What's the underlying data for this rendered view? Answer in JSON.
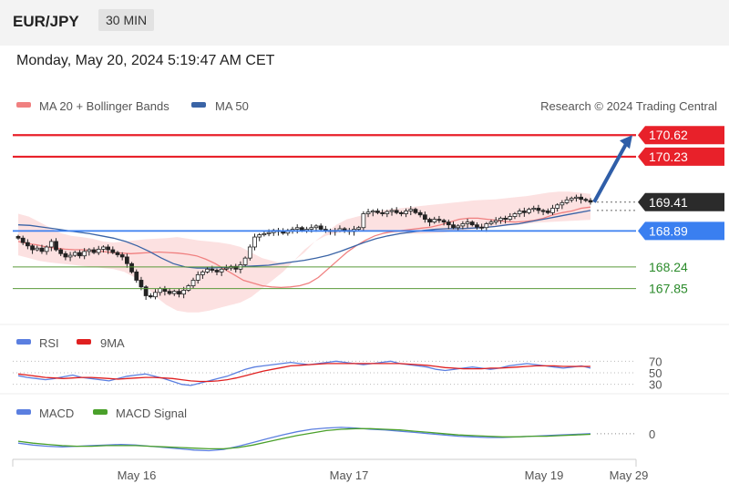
{
  "header": {
    "pair": "EUR/JPY",
    "timeframe": "30 MIN"
  },
  "datetime": "Monday, May 20, 2024 5:19:47 AM CET",
  "legend": {
    "ma20": "MA 20 + Bollinger Bands",
    "ma50": "MA 50",
    "rsi": "RSI",
    "rsi_ma": "9MA",
    "macd": "MACD",
    "macd_signal": "MACD Signal"
  },
  "credit": "Research © 2024 Trading Central",
  "colors": {
    "ma20": "#f08080",
    "ma50": "#3a64a6",
    "bollinger": "#fbd9d9",
    "resistance": "#e8212a",
    "support_blue": "#3a7ff0",
    "support_green": "#5a9a3a",
    "rsi": "#5b7fe0",
    "rsi_ma": "#e02020",
    "macd": "#5b7fe0",
    "macd_signal": "#4aa02a"
  },
  "chart_data": {
    "type": "candlestick",
    "x_labels": [
      "May 16",
      "May 17",
      "May 19",
      "May 29"
    ],
    "ylim": [
      167.3,
      170.92
    ],
    "levels": [
      {
        "value": 170.62,
        "label": "170.62",
        "kind": "resistance"
      },
      {
        "value": 170.23,
        "label": "170.23",
        "kind": "resistance"
      },
      {
        "value": 169.41,
        "label": "169.41",
        "kind": "current"
      },
      {
        "value": 168.89,
        "label": "168.89",
        "kind": "pivot"
      },
      {
        "value": 168.24,
        "label": "168.24",
        "kind": "support"
      },
      {
        "value": 167.85,
        "label": "167.85",
        "kind": "support"
      }
    ],
    "arrow_target": 170.62,
    "closes": [
      168.76,
      168.68,
      168.62,
      168.55,
      168.58,
      168.52,
      168.6,
      168.7,
      168.55,
      168.48,
      168.42,
      168.45,
      168.5,
      168.44,
      168.52,
      168.55,
      168.5,
      168.56,
      168.6,
      168.55,
      168.5,
      168.46,
      168.42,
      168.3,
      168.15,
      168.0,
      167.88,
      167.72,
      167.7,
      167.78,
      167.85,
      167.8,
      167.76,
      167.8,
      167.75,
      167.82,
      167.9,
      168.0,
      168.1,
      168.15,
      168.2,
      168.18,
      168.15,
      168.2,
      168.22,
      168.25,
      168.2,
      168.28,
      168.4,
      168.6,
      168.78,
      168.82,
      168.84,
      168.86,
      168.9,
      168.88,
      168.85,
      168.9,
      168.92,
      168.95,
      168.9,
      168.92,
      168.95,
      168.98,
      168.92,
      168.9,
      168.88,
      168.9,
      168.93,
      168.9,
      168.88,
      168.92,
      168.95,
      169.2,
      169.23,
      169.25,
      169.22,
      169.2,
      169.24,
      169.26,
      169.22,
      169.2,
      169.25,
      169.28,
      169.22,
      169.18,
      169.1,
      169.05,
      169.1,
      169.08,
      169.05,
      169.0,
      168.95,
      168.98,
      169.02,
      169.05,
      169.0,
      168.96,
      168.95,
      169.02,
      169.05,
      169.08,
      169.12,
      169.1,
      169.15,
      169.2,
      169.25,
      169.22,
      169.28,
      169.3,
      169.26,
      169.25,
      169.22,
      169.3,
      169.36,
      169.4,
      169.45,
      169.48,
      169.5,
      169.46,
      169.44,
      169.41
    ],
    "ma20": [
      168.7,
      168.66,
      168.64,
      168.6,
      168.58,
      168.56,
      168.55,
      168.55,
      168.53,
      168.52,
      168.5,
      168.49,
      168.48,
      168.49,
      168.5,
      168.51,
      168.5,
      168.49,
      168.47,
      168.44,
      168.38,
      168.3,
      168.2,
      168.1,
      168.0,
      167.95,
      167.9,
      167.88,
      167.87,
      167.88,
      167.9,
      167.95,
      168.05,
      168.2,
      168.35,
      168.5,
      168.62,
      168.72,
      168.8,
      168.85,
      168.88,
      168.9,
      168.92,
      168.94,
      168.96,
      169.0,
      169.05,
      169.1,
      169.12,
      169.12,
      169.1,
      169.08,
      169.06,
      169.05,
      169.06,
      169.08,
      169.12,
      169.18,
      169.22,
      169.25,
      169.3,
      169.32
    ],
    "ma50": [
      169.0,
      168.99,
      168.96,
      168.93,
      168.9,
      168.87,
      168.84,
      168.8,
      168.76,
      168.7,
      168.62,
      168.52,
      168.4,
      168.3,
      168.24,
      168.22,
      168.22,
      168.23,
      168.24,
      168.25,
      168.26,
      168.27,
      168.3,
      168.33,
      168.36,
      168.4,
      168.45,
      168.52,
      168.6,
      168.68,
      168.75,
      168.8,
      168.84,
      168.87,
      168.9,
      168.92,
      168.93,
      168.93,
      168.94,
      168.95,
      168.97,
      169.0,
      169.02,
      169.06,
      169.1,
      169.14,
      169.18,
      169.22,
      169.26
    ],
    "bollinger_upper": [
      169.2,
      169.15,
      169.05,
      168.95,
      168.85,
      168.8,
      168.78,
      168.75,
      168.7,
      168.68,
      168.7,
      168.72,
      168.74,
      168.75,
      168.76,
      168.78,
      168.75,
      168.72,
      168.7,
      168.68,
      168.65,
      168.6,
      168.5,
      168.4,
      168.35,
      168.3,
      168.35,
      168.5,
      168.7,
      168.85,
      169.0,
      169.1,
      169.15,
      169.2,
      169.25,
      169.28,
      169.3,
      169.32,
      169.34,
      169.36,
      169.38,
      169.4,
      169.42,
      169.44,
      169.45,
      169.46,
      169.48,
      169.5,
      169.52,
      169.55,
      169.58,
      169.6,
      169.6,
      169.58,
      169.56
    ],
    "bollinger_lower": [
      168.45,
      168.4,
      168.35,
      168.32,
      168.3,
      168.28,
      168.26,
      168.24,
      168.22,
      168.2,
      168.15,
      168.05,
      167.9,
      167.7,
      167.55,
      167.45,
      167.42,
      167.42,
      167.45,
      167.5,
      167.55,
      167.6,
      167.7,
      167.85,
      168.0,
      168.15,
      168.35,
      168.55,
      168.7,
      168.8,
      168.85,
      168.88,
      168.9,
      168.9,
      168.88,
      168.86,
      168.85,
      168.84,
      168.84,
      168.85,
      168.86,
      168.88,
      168.9,
      168.92,
      168.94,
      168.96,
      168.98,
      169.0,
      169.02,
      169.04,
      169.05,
      169.06,
      169.07,
      169.08,
      169.09
    ],
    "rsi": {
      "levels": [
        70,
        50,
        30
      ],
      "ylim": [
        20,
        80
      ],
      "values": [
        45,
        42,
        40,
        38,
        40,
        43,
        46,
        42,
        40,
        38,
        36,
        40,
        44,
        46,
        48,
        44,
        40,
        35,
        30,
        28,
        32,
        36,
        40,
        44,
        50,
        56,
        60,
        62,
        64,
        66,
        68,
        66,
        64,
        66,
        68,
        70,
        68,
        66,
        64,
        66,
        68,
        70,
        66,
        64,
        62,
        60,
        56,
        54,
        56,
        58,
        60,
        58,
        56,
        58,
        62,
        64,
        66,
        64,
        62,
        60,
        58,
        60,
        62,
        58
      ],
      "ma9": [
        48,
        46,
        44,
        42,
        41,
        40,
        41,
        42,
        42,
        41,
        40,
        39,
        40,
        41,
        42,
        42,
        41,
        40,
        38,
        36,
        35,
        35,
        36,
        38,
        41,
        45,
        49,
        53,
        56,
        59,
        62,
        63,
        64,
        65,
        66,
        66,
        66,
        66,
        66,
        66,
        66,
        66,
        66,
        65,
        64,
        63,
        61,
        59,
        58,
        57,
        57,
        57,
        58,
        58,
        59,
        60,
        61,
        62,
        62,
        62,
        61,
        61,
        61,
        61
      ]
    },
    "macd": {
      "zero_label": "0",
      "ylim": [
        -0.25,
        0.3
      ],
      "macd": [
        -0.05,
        -0.08,
        -0.1,
        -0.11,
        -0.1,
        -0.09,
        -0.08,
        -0.07,
        -0.08,
        -0.1,
        -0.12,
        -0.14,
        -0.16,
        -0.17,
        -0.15,
        -0.1,
        -0.04,
        0.02,
        0.08,
        0.13,
        0.17,
        0.19,
        0.2,
        0.19,
        0.17,
        0.16,
        0.14,
        0.12,
        0.1,
        0.08,
        0.06,
        0.05,
        0.04,
        0.04,
        0.05,
        0.06,
        0.07,
        0.08,
        0.09,
        0.1
      ],
      "signal": [
        -0.02,
        -0.05,
        -0.07,
        -0.09,
        -0.1,
        -0.1,
        -0.09,
        -0.09,
        -0.09,
        -0.1,
        -0.11,
        -0.12,
        -0.13,
        -0.14,
        -0.14,
        -0.12,
        -0.08,
        -0.03,
        0.02,
        0.07,
        0.11,
        0.15,
        0.17,
        0.18,
        0.18,
        0.17,
        0.16,
        0.14,
        0.12,
        0.1,
        0.08,
        0.07,
        0.06,
        0.05,
        0.05,
        0.06,
        0.06,
        0.07,
        0.08,
        0.09
      ]
    }
  }
}
